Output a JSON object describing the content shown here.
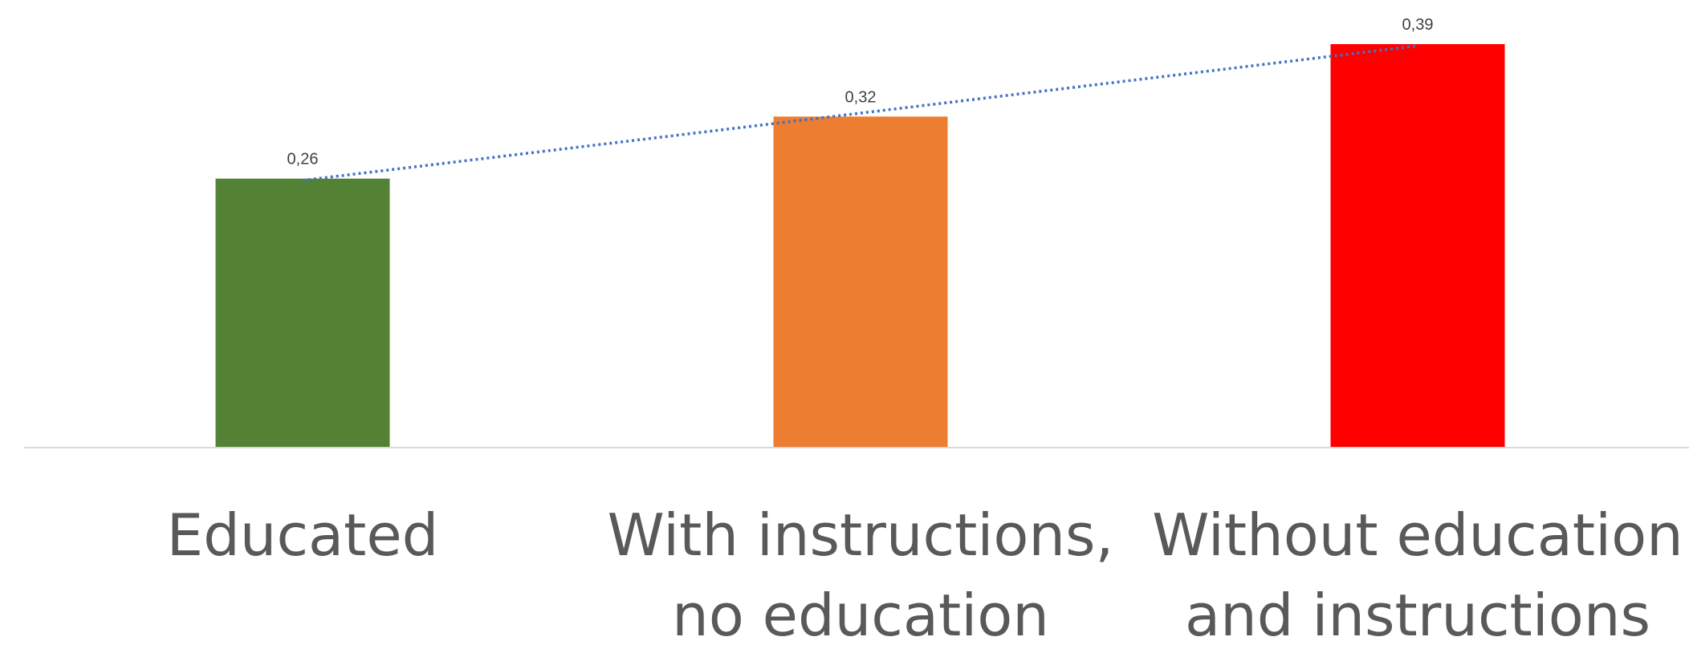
{
  "chart_data": {
    "type": "bar",
    "categories": [
      [
        "Educated"
      ],
      [
        "With instructions,",
        "no education"
      ],
      [
        "Without education",
        "and instructions"
      ]
    ],
    "values": [
      0.26,
      0.32,
      0.39
    ],
    "data_labels": [
      "0,26",
      "0,32",
      "0,39"
    ],
    "bar_colors": [
      "#548235",
      "#ED7D31",
      "#FF0000"
    ],
    "trendline": {
      "type": "linear",
      "style": "dotted",
      "color": "#4472C4"
    },
    "ylim": [
      0,
      0.39
    ],
    "axis_line_color": "#D9D9D9",
    "legend": "none",
    "grid": false,
    "title": "",
    "xlabel": "",
    "ylabel": ""
  }
}
